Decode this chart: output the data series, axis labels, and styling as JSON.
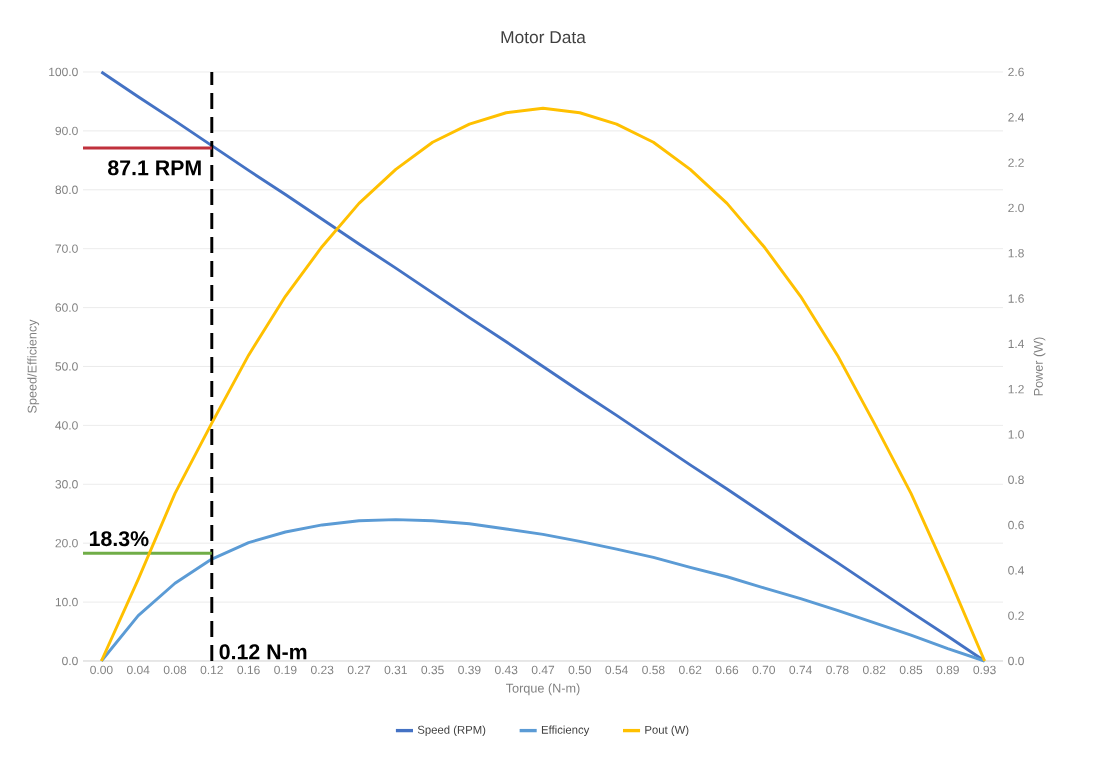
{
  "chart_data": {
    "type": "line",
    "title": "Motor Data",
    "xlabel": "Torque (N-m)",
    "ylabel": "Speed/Efficiency",
    "y2label": "Power (W)",
    "categories": [
      "0.00",
      "0.04",
      "0.08",
      "0.12",
      "0.16",
      "0.19",
      "0.23",
      "0.27",
      "0.31",
      "0.35",
      "0.39",
      "0.43",
      "0.47",
      "0.50",
      "0.54",
      "0.58",
      "0.62",
      "0.66",
      "0.70",
      "0.74",
      "0.78",
      "0.82",
      "0.85",
      "0.89",
      "0.93"
    ],
    "series": [
      {
        "name": "Speed (RPM)",
        "color": "#4472c4",
        "values": [
          100,
          95.8,
          91.7,
          87.5,
          83.3,
          79.2,
          75.0,
          70.8,
          66.7,
          62.5,
          58.3,
          54.2,
          50.0,
          45.8,
          41.7,
          37.5,
          33.3,
          29.2,
          25.0,
          20.8,
          16.7,
          12.5,
          8.3,
          4.2,
          0
        ]
      },
      {
        "name": "Efficiency",
        "color": "#5b9bd5",
        "values": [
          0,
          7.7,
          13.2,
          17.3,
          20.1,
          21.9,
          23.1,
          23.8,
          24.0,
          23.8,
          23.3,
          22.4,
          21.5,
          20.3,
          19.0,
          17.6,
          15.9,
          14.3,
          12.4,
          10.6,
          8.6,
          6.5,
          4.4,
          2.1,
          0
        ]
      },
      {
        "name": "Pout (W)",
        "color": "#ffc000",
        "axis": "y2",
        "values": [
          0,
          0.36,
          0.74,
          1.05,
          1.35,
          1.61,
          1.83,
          2.02,
          2.17,
          2.29,
          2.37,
          2.42,
          2.44,
          2.42,
          2.37,
          2.29,
          2.17,
          2.02,
          1.83,
          1.61,
          1.35,
          1.05,
          0.74,
          0.38,
          0
        ]
      }
    ],
    "ylim": [
      0,
      100
    ],
    "yticks": [
      {
        "value": 0,
        "label": "0.0"
      },
      {
        "value": 10,
        "label": "10.0"
      },
      {
        "value": 20,
        "label": "20.0"
      },
      {
        "value": 30,
        "label": "30.0"
      },
      {
        "value": 40,
        "label": "40.0"
      },
      {
        "value": 50,
        "label": "50.0"
      },
      {
        "value": 60,
        "label": "60.0"
      },
      {
        "value": 70,
        "label": "70.0"
      },
      {
        "value": 80,
        "label": "80.0"
      },
      {
        "value": 90,
        "label": "90.0"
      },
      {
        "value": 100,
        "label": "100.0"
      }
    ],
    "y2lim": [
      0,
      2.6
    ],
    "y2ticks": [
      {
        "value": 0,
        "label": "0.0"
      },
      {
        "value": 0.2,
        "label": "0.2"
      },
      {
        "value": 0.4,
        "label": "0.4"
      },
      {
        "value": 0.6,
        "label": "0.6"
      },
      {
        "value": 0.8,
        "label": "0.8"
      },
      {
        "value": 1.0,
        "label": "1.0"
      },
      {
        "value": 1.2,
        "label": "1.2"
      },
      {
        "value": 1.4,
        "label": "1.4"
      },
      {
        "value": 1.6,
        "label": "1.6"
      },
      {
        "value": 1.8,
        "label": "1.8"
      },
      {
        "value": 2.0,
        "label": "2.0"
      },
      {
        "value": 2.2,
        "label": "2.2"
      },
      {
        "value": 2.4,
        "label": "2.4"
      },
      {
        "value": 2.6,
        "label": "2.6"
      }
    ],
    "ref_lines": [
      {
        "axis": "x",
        "value": "0.12",
        "label": "0.12 N-m",
        "color": "#000000",
        "line_style": "dashed"
      },
      {
        "axis": "y",
        "value": 87.1,
        "label": "87.1 RPM",
        "color": "#c0313c"
      },
      {
        "axis": "y",
        "value": 18.3,
        "label": "18.3%",
        "color": "#70ad47"
      }
    ],
    "grid": "y",
    "legend": "bottom",
    "marker": "none",
    "line_style": "solid"
  }
}
